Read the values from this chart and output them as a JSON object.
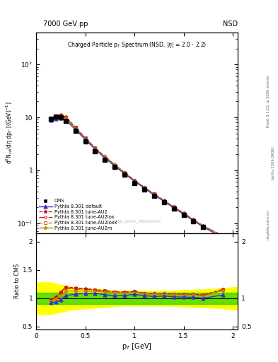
{
  "title_top_left": "7000 GeV pp",
  "title_top_right": "NSD",
  "plot_title": "Charged Particle p$_T$ Spectrum (NSD, |$\\eta$| = 2.0 - 2.2)",
  "xlabel": "p$_{T}$ [GeV]",
  "ylabel_main": "d$^{2}$N$_{ch}$/d$\\eta$ dp$_{T}$ [(GeV)$^{-1}$]",
  "ylabel_ratio": "Ratio to CMS",
  "watermark": "CMS_2010_S8656010",
  "cms_pt": [
    0.15,
    0.2,
    0.25,
    0.3,
    0.4,
    0.5,
    0.6,
    0.7,
    0.8,
    0.9,
    1.0,
    1.1,
    1.2,
    1.3,
    1.4,
    1.5,
    1.6,
    1.7,
    1.9
  ],
  "cms_val": [
    9.5,
    10.2,
    10.1,
    8.5,
    5.5,
    3.5,
    2.3,
    1.6,
    1.15,
    0.82,
    0.58,
    0.44,
    0.33,
    0.25,
    0.19,
    0.145,
    0.11,
    0.085,
    0.05
  ],
  "cms_err": [
    0.08,
    0.08,
    0.08,
    0.07,
    0.05,
    0.04,
    0.02,
    0.015,
    0.01,
    0.008,
    0.006,
    0.005,
    0.004,
    0.003,
    0.002,
    0.002,
    0.0015,
    0.001,
    0.0008
  ],
  "default_val": [
    8.8,
    9.5,
    9.8,
    8.9,
    5.9,
    3.8,
    2.5,
    1.7,
    1.2,
    0.86,
    0.62,
    0.46,
    0.34,
    0.26,
    0.195,
    0.148,
    0.112,
    0.085,
    0.053
  ],
  "au2_val": [
    9.3,
    10.5,
    11.2,
    10.2,
    6.5,
    4.1,
    2.65,
    1.82,
    1.28,
    0.91,
    0.65,
    0.48,
    0.36,
    0.27,
    0.205,
    0.156,
    0.118,
    0.09,
    0.058
  ],
  "au2lox_val": [
    9.2,
    10.3,
    11.0,
    10.0,
    6.4,
    4.05,
    2.62,
    1.8,
    1.27,
    0.9,
    0.645,
    0.475,
    0.355,
    0.268,
    0.203,
    0.155,
    0.117,
    0.089,
    0.057
  ],
  "au2loxx_val": [
    9.3,
    10.5,
    11.1,
    10.1,
    6.45,
    4.08,
    2.63,
    1.81,
    1.275,
    0.905,
    0.648,
    0.478,
    0.357,
    0.269,
    0.204,
    0.155,
    0.1175,
    0.089,
    0.0575
  ],
  "au2m_val": [
    9.0,
    10.0,
    10.5,
    9.6,
    6.2,
    3.95,
    2.58,
    1.78,
    1.26,
    0.895,
    0.64,
    0.473,
    0.353,
    0.266,
    0.201,
    0.153,
    0.116,
    0.088,
    0.057
  ],
  "color_default": "#3333cc",
  "color_au2": "#cc1111",
  "color_au2lox": "#cc1111",
  "color_au2loxx": "#cc6622",
  "color_au2m": "#cc8800",
  "color_cms": "#000000",
  "green_band_low": 0.9,
  "green_band_high": 1.1,
  "yellow_band_x": [
    0.0,
    0.15,
    0.35,
    0.85,
    1.35,
    1.85,
    2.05
  ],
  "yellow_band_low": [
    0.72,
    0.72,
    0.8,
    0.87,
    0.87,
    0.83,
    0.8
  ],
  "yellow_band_high": [
    1.28,
    1.28,
    1.2,
    1.13,
    1.13,
    1.17,
    1.2
  ]
}
